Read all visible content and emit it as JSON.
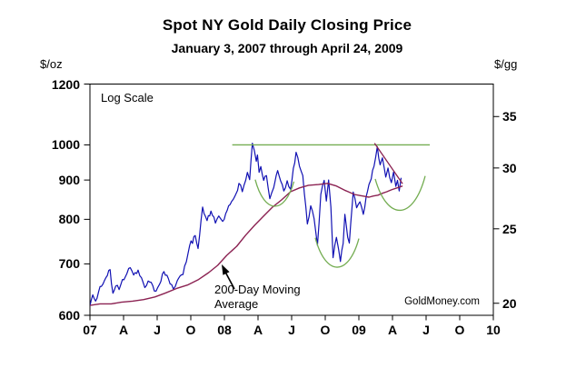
{
  "header": {
    "title": "Spot NY Gold Daily Closing Price",
    "subtitle": "January 3, 2007 through April 24, 2009"
  },
  "annotations": {
    "log_scale_note": "Log Scale",
    "ma_label_line1": "200-Day Moving",
    "ma_label_line2": "Average",
    "source": "GoldMoney.com"
  },
  "colors": {
    "price_line": "#1111b3",
    "moving_average_line": "#8b2252",
    "annotation_green": "#74ad52",
    "axis": "#000000",
    "background": "#ffffff"
  },
  "chart_data": {
    "type": "line",
    "title": "Spot NY Gold Daily Closing Price",
    "subtitle": "January 3, 2007 through April 24, 2009",
    "y_axis_left": {
      "unit": "$/oz",
      "scale": "log",
      "range": [
        600,
        1200
      ],
      "ticks": [
        1200,
        1000,
        900,
        800,
        700,
        600
      ]
    },
    "y_axis_right": {
      "unit": "$/gg",
      "ticks": [
        35,
        30,
        25,
        20
      ],
      "grams_per_troy_oz": 31.1035
    },
    "x_axis": {
      "unit": "quarters",
      "tick_labels": [
        "07",
        "A",
        "J",
        "O",
        "08",
        "A",
        "J",
        "O",
        "09",
        "A",
        "J",
        "O",
        "10"
      ],
      "months_per_tick": 3,
      "range_months": [
        0,
        36
      ]
    },
    "grid": false,
    "legend": false,
    "series": [
      {
        "name": "spot-gold-daily-close",
        "style": "jagged-daily",
        "points_months_price": [
          [
            0,
            617
          ],
          [
            0.25,
            638
          ],
          [
            0.5,
            626
          ],
          [
            0.9,
            654
          ],
          [
            1.3,
            666
          ],
          [
            1.8,
            688
          ],
          [
            2.05,
            641
          ],
          [
            2.3,
            655
          ],
          [
            2.6,
            648
          ],
          [
            2.9,
            668
          ],
          [
            3.3,
            680
          ],
          [
            3.6,
            692
          ],
          [
            3.9,
            677
          ],
          [
            4.3,
            687
          ],
          [
            4.9,
            652
          ],
          [
            5.2,
            665
          ],
          [
            5.6,
            656
          ],
          [
            5.9,
            645
          ],
          [
            6.2,
            658
          ],
          [
            6.6,
            684
          ],
          [
            7.0,
            670
          ],
          [
            7.45,
            649
          ],
          [
            7.8,
            666
          ],
          [
            8.3,
            678
          ],
          [
            8.9,
            740
          ],
          [
            9.4,
            762
          ],
          [
            9.65,
            733
          ],
          [
            10.05,
            830
          ],
          [
            10.45,
            797
          ],
          [
            10.8,
            820
          ],
          [
            11.2,
            791
          ],
          [
            11.5,
            808
          ],
          [
            11.85,
            795
          ],
          [
            12.25,
            822
          ],
          [
            12.5,
            836
          ],
          [
            12.8,
            850
          ],
          [
            13.05,
            865
          ],
          [
            13.3,
            891
          ],
          [
            13.6,
            869
          ],
          [
            14.05,
            921
          ],
          [
            14.25,
            901
          ],
          [
            14.5,
            1005
          ],
          [
            14.85,
            952
          ],
          [
            14.95,
            970
          ],
          [
            15.1,
            921
          ],
          [
            15.25,
            937
          ],
          [
            15.5,
            899
          ],
          [
            15.75,
            912
          ],
          [
            16.05,
            851
          ],
          [
            16.4,
            880
          ],
          [
            16.75,
            926
          ],
          [
            17.3,
            871
          ],
          [
            17.6,
            898
          ],
          [
            17.9,
            876
          ],
          [
            18.4,
            978
          ],
          [
            18.7,
            938
          ],
          [
            19.0,
            912
          ],
          [
            19.4,
            789
          ],
          [
            19.7,
            833
          ],
          [
            20.0,
            802
          ],
          [
            20.3,
            740
          ],
          [
            20.6,
            862
          ],
          [
            20.9,
            899
          ],
          [
            21.1,
            845
          ],
          [
            21.3,
            900
          ],
          [
            21.5,
            830
          ],
          [
            21.7,
            713
          ],
          [
            22.0,
            758
          ],
          [
            22.2,
            730
          ],
          [
            22.35,
            705
          ],
          [
            22.6,
            744
          ],
          [
            22.75,
            812
          ],
          [
            23.0,
            758
          ],
          [
            23.15,
            745
          ],
          [
            23.5,
            868
          ],
          [
            23.8,
            828
          ],
          [
            24.1,
            843
          ],
          [
            24.4,
            812
          ],
          [
            24.65,
            856
          ],
          [
            24.9,
            888
          ],
          [
            25.1,
            903
          ],
          [
            25.35,
            938
          ],
          [
            25.65,
            995
          ],
          [
            25.9,
            942
          ],
          [
            26.1,
            962
          ],
          [
            26.4,
            908
          ],
          [
            26.6,
            933
          ],
          [
            26.9,
            893
          ],
          [
            27.1,
            922
          ],
          [
            27.3,
            883
          ],
          [
            27.45,
            899
          ],
          [
            27.6,
            871
          ],
          [
            27.77,
            906
          ]
        ]
      },
      {
        "name": "200-day-moving-average",
        "style": "smooth",
        "points_months_price": [
          [
            0,
            618
          ],
          [
            0.9,
            621
          ],
          [
            1.9,
            621
          ],
          [
            2.8,
            624
          ],
          [
            3.8,
            626
          ],
          [
            4.8,
            629
          ],
          [
            5.8,
            634
          ],
          [
            6.7,
            641
          ],
          [
            7.7,
            650
          ],
          [
            8.7,
            657
          ],
          [
            9.7,
            668
          ],
          [
            10.6,
            682
          ],
          [
            11.4,
            697
          ],
          [
            12.2,
            718
          ],
          [
            13.1,
            738
          ],
          [
            13.9,
            763
          ],
          [
            14.7,
            786
          ],
          [
            15.5,
            808
          ],
          [
            16.3,
            830
          ],
          [
            17.1,
            848
          ],
          [
            17.9,
            869
          ],
          [
            18.7,
            879
          ],
          [
            19.5,
            886
          ],
          [
            20.4,
            888
          ],
          [
            21.2,
            891
          ],
          [
            22.0,
            884
          ],
          [
            22.8,
            872
          ],
          [
            23.6,
            862
          ],
          [
            24.1,
            859
          ],
          [
            24.5,
            857
          ],
          [
            24.9,
            855
          ],
          [
            25.3,
            858
          ],
          [
            25.7,
            860
          ],
          [
            26.1,
            865
          ],
          [
            26.5,
            869
          ],
          [
            26.9,
            874
          ],
          [
            27.4,
            879
          ],
          [
            27.9,
            884
          ]
        ]
      }
    ],
    "overlays": {
      "resistance_line": {
        "value": 1000,
        "m_start": 12.7,
        "m_end": 30.33
      },
      "cups": [
        {
          "m_start": 14.75,
          "m_end": 18.2,
          "tip_values": [
            901,
            896
          ],
          "bottom_value": 832
        },
        {
          "m_start": 20.11,
          "m_end": 24.0,
          "tip_values": [
            757,
            755
          ],
          "bottom_value": 693
        },
        {
          "m_start": 25.46,
          "m_end": 29.92,
          "tip_values": [
            903,
            911
          ],
          "bottom_value": 822
        }
      ],
      "downtrend_line": {
        "m_start": 25.4,
        "value_start": 1005,
        "m_end": 27.9,
        "value_end": 890
      }
    }
  }
}
